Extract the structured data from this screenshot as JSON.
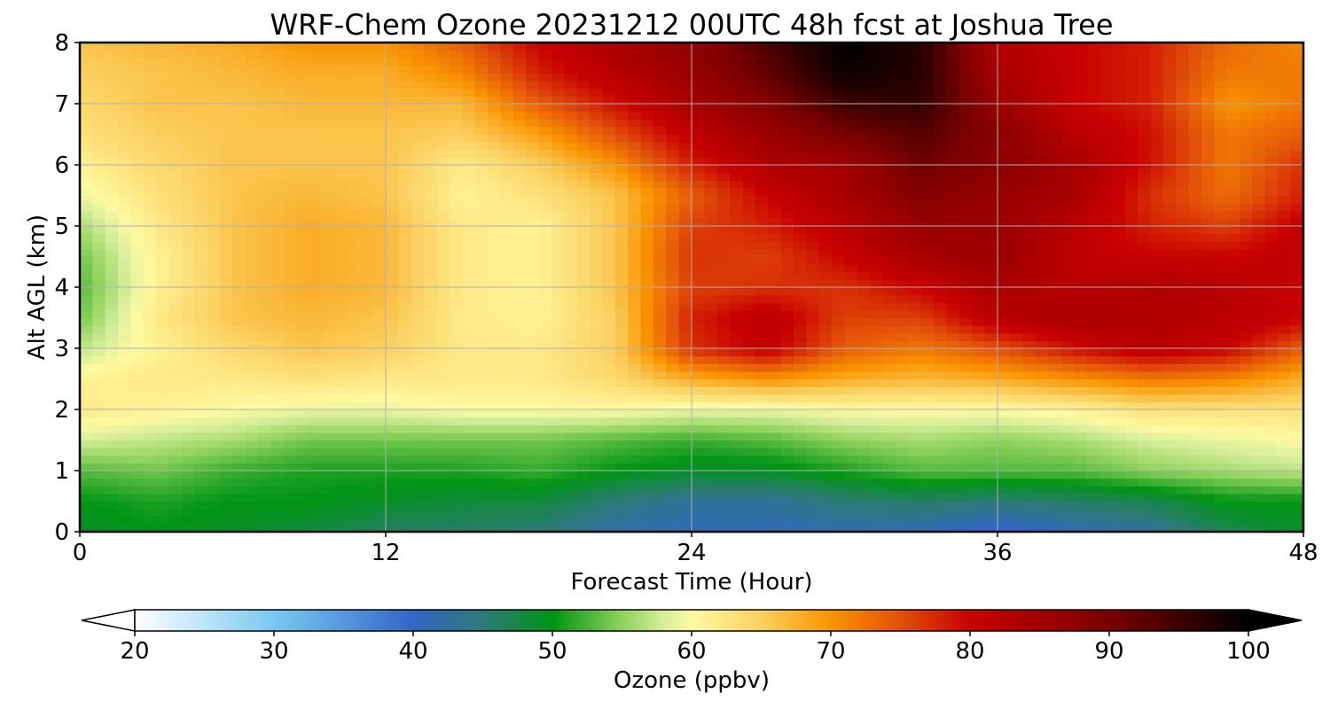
{
  "chart_data": {
    "type": "heatmap",
    "title": "WRF-Chem Ozone  20231212 00UTC 48h fcst at Joshua Tree",
    "xlabel": "Forecast Time (Hour)",
    "ylabel": "Alt AGL (km)",
    "xlim": [
      0,
      48
    ],
    "ylim": [
      0,
      8
    ],
    "xticks": [
      0,
      12,
      24,
      36,
      48
    ],
    "yticks": [
      0,
      1,
      2,
      3,
      4,
      5,
      6,
      7,
      8
    ],
    "grid": true,
    "x": [
      0,
      3,
      6,
      9,
      12,
      15,
      18,
      21,
      24,
      27,
      30,
      33,
      36,
      39,
      42,
      45,
      48
    ],
    "y": [
      0,
      0.5,
      1,
      1.5,
      2,
      2.5,
      3,
      3.5,
      4,
      4.5,
      5,
      5.5,
      6,
      6.5,
      7,
      7.5,
      8
    ],
    "z": [
      [
        49,
        50,
        49,
        48,
        46,
        46,
        45,
        42,
        41,
        41,
        42,
        41,
        39,
        41,
        43,
        47,
        49
      ],
      [
        50,
        51,
        50,
        50,
        49,
        48,
        48,
        45,
        43,
        43,
        45,
        46,
        45,
        46,
        47,
        50,
        50
      ],
      [
        53,
        54,
        52,
        51,
        51,
        51,
        52,
        50,
        49,
        49,
        51,
        53,
        53,
        53,
        55,
        56,
        57
      ],
      [
        58,
        57,
        56,
        54,
        54,
        54,
        54,
        53,
        52,
        53,
        55,
        56,
        55,
        56,
        58,
        59,
        60
      ],
      [
        62,
        61,
        60,
        59,
        59,
        60,
        60,
        60,
        59,
        59,
        60,
        60,
        60,
        61,
        63,
        63,
        63
      ],
      [
        61,
        62,
        62,
        63,
        62,
        62,
        62,
        64,
        68,
        70,
        68,
        67,
        68,
        70,
        72,
        71,
        68
      ],
      [
        57,
        61,
        64,
        66,
        65,
        62,
        62,
        65,
        77,
        81,
        74,
        72,
        75,
        79,
        82,
        80,
        74
      ],
      [
        54,
        62,
        66,
        67,
        66,
        62,
        61,
        65,
        78,
        82,
        76,
        76,
        82,
        84,
        83,
        82,
        80
      ],
      [
        53,
        61,
        66,
        68,
        67,
        62,
        61,
        66,
        76,
        77,
        77,
        80,
        84,
        82,
        83,
        82,
        80
      ],
      [
        54,
        61,
        66,
        68,
        67,
        62,
        61,
        66,
        77,
        76,
        80,
        84,
        86,
        81,
        80,
        80,
        81
      ],
      [
        56,
        62,
        66,
        68,
        67,
        62,
        61,
        66,
        76,
        78,
        82,
        86,
        86,
        82,
        78,
        76,
        81
      ],
      [
        59,
        63,
        66,
        67,
        66,
        61,
        63,
        66,
        74,
        80,
        84,
        89,
        86,
        84,
        77,
        73,
        78
      ],
      [
        61,
        64,
        66,
        66,
        66,
        62,
        65,
        70,
        78,
        83,
        85,
        91,
        88,
        84,
        79,
        72,
        77
      ],
      [
        63,
        65,
        66,
        66,
        66,
        65,
        69,
        75,
        81,
        86,
        90,
        93,
        88,
        82,
        79,
        72,
        74
      ],
      [
        64,
        66,
        66,
        67,
        67,
        67,
        74,
        79,
        84,
        89,
        95,
        96,
        86,
        80,
        78,
        70,
        72
      ],
      [
        65,
        66,
        67,
        68,
        68,
        71,
        78,
        82,
        86,
        92,
        99,
        97,
        84,
        80,
        78,
        72,
        72
      ],
      [
        66,
        67,
        68,
        70,
        70,
        74,
        80,
        84,
        87,
        94,
        100,
        97,
        83,
        80,
        78,
        73,
        71
      ]
    ],
    "colorbar": {
      "label": "Ozone  (ppbv)",
      "min": 20,
      "max": 100,
      "ticks": [
        20,
        30,
        40,
        50,
        60,
        70,
        80,
        90,
        100
      ],
      "extend": "both",
      "stops": [
        {
          "v": 20,
          "c": "#ffffff"
        },
        {
          "v": 30,
          "c": "#78c8f2"
        },
        {
          "v": 40,
          "c": "#3266c7"
        },
        {
          "v": 45,
          "c": "#2d7a78"
        },
        {
          "v": 50,
          "c": "#009414"
        },
        {
          "v": 55,
          "c": "#8ed25c"
        },
        {
          "v": 58,
          "c": "#d6ee9a"
        },
        {
          "v": 60,
          "c": "#fffaa2"
        },
        {
          "v": 65,
          "c": "#fbd060"
        },
        {
          "v": 70,
          "c": "#f99400"
        },
        {
          "v": 75,
          "c": "#e2500a"
        },
        {
          "v": 80,
          "c": "#c80000"
        },
        {
          "v": 90,
          "c": "#7a0000"
        },
        {
          "v": 100,
          "c": "#000000"
        }
      ]
    }
  }
}
